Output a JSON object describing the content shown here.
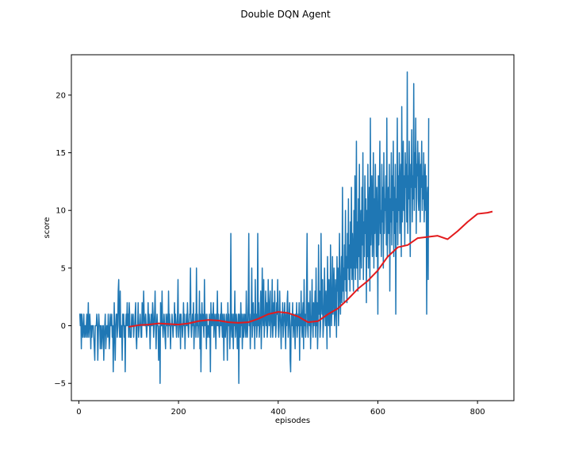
{
  "chart_data": {
    "type": "line",
    "title": "Double DQN Agent",
    "xlabel": "episodes",
    "ylabel": "score",
    "xlim": [
      -15,
      873
    ],
    "ylim": [
      -6.5,
      23.5
    ],
    "xticks": [
      0,
      200,
      400,
      600,
      800
    ],
    "yticks": [
      -5,
      0,
      5,
      10,
      15,
      20
    ],
    "grid": false,
    "colors": {
      "raw": "#1f77b4",
      "average": "#e31a1c"
    },
    "series": [
      {
        "role": "raw",
        "x_start": 1,
        "values": [
          1,
          1,
          0,
          1,
          -2,
          1,
          0,
          -1,
          0,
          1,
          -1,
          0,
          0,
          -1,
          0,
          1,
          -1,
          0,
          2,
          -1,
          0,
          1,
          0,
          -2,
          0,
          -1,
          0,
          0,
          0,
          -1,
          -2,
          -3,
          0,
          0,
          0,
          1,
          0,
          -3,
          -1,
          1,
          0,
          0,
          -2,
          0,
          0,
          -2,
          -1,
          0,
          0,
          -3,
          -1,
          0,
          1,
          -2,
          -1,
          0,
          0,
          -1,
          1,
          0,
          -2,
          -1,
          1,
          0,
          0,
          1,
          -1,
          0,
          -4,
          -1,
          2,
          -1,
          -3,
          0,
          1,
          1,
          -1,
          0,
          3,
          4,
          0,
          -1,
          3,
          -1,
          0,
          0,
          -3,
          1,
          0,
          1,
          -1,
          0,
          -4,
          0,
          1,
          0,
          2,
          0,
          1,
          -1,
          2,
          1,
          -1,
          -1,
          -1,
          1,
          0,
          0,
          1,
          -1,
          0,
          0,
          1,
          2,
          -1,
          -2,
          0,
          0,
          2,
          -1,
          0,
          0,
          1,
          0,
          -1,
          -1,
          2,
          1,
          0,
          3,
          1,
          0,
          0,
          1,
          0,
          -1,
          0,
          0,
          2,
          0,
          1,
          0,
          -2,
          0,
          1,
          0,
          0,
          2,
          1,
          -1,
          0,
          1,
          3,
          0,
          -2,
          0,
          1,
          0,
          0,
          -3,
          -1,
          0,
          -5,
          2,
          0,
          0,
          3,
          0,
          -1,
          0,
          1,
          0,
          -1,
          -2,
          1,
          0,
          0,
          1,
          -1,
          3,
          0,
          1,
          0,
          -2,
          0,
          0,
          1,
          0,
          -1,
          0,
          0,
          2,
          0,
          1,
          0,
          -1,
          0,
          1,
          4,
          -1,
          0,
          0,
          1,
          -2,
          1,
          0,
          0,
          -1,
          0,
          2,
          0,
          1,
          -2,
          0,
          0,
          1,
          0,
          2,
          0,
          -1,
          0,
          1,
          1,
          5,
          0,
          -1,
          0,
          1,
          0,
          2,
          -2,
          0,
          0,
          1,
          -1,
          5,
          0,
          1,
          -1,
          0,
          0,
          3,
          -2,
          1,
          -4,
          0,
          2,
          0,
          1,
          0,
          -1,
          4,
          0,
          1,
          0,
          -2,
          1,
          -1,
          0,
          0,
          -1,
          1,
          0,
          -4,
          2,
          0,
          1,
          0,
          1,
          2,
          -1,
          0,
          1,
          0,
          -2,
          1,
          0,
          3,
          0,
          1,
          0,
          -1,
          0,
          1,
          0,
          2,
          0,
          -1,
          1,
          0,
          -3,
          1,
          0,
          -1,
          0,
          1,
          0,
          -3,
          2,
          0,
          1,
          0,
          -2,
          0,
          8,
          0,
          -1,
          1,
          0,
          -2,
          1,
          0,
          3,
          -1,
          0,
          1,
          0,
          -2,
          0,
          1,
          -5,
          1,
          0,
          -1,
          2,
          0,
          1,
          -2,
          0,
          1,
          -1,
          0,
          1,
          0,
          -1,
          3,
          0,
          -1,
          0,
          2,
          8,
          0,
          1,
          -2,
          0,
          1,
          5,
          -1,
          0,
          2,
          0,
          1,
          -2,
          4,
          0,
          1,
          -1,
          0,
          8,
          0,
          2,
          -1,
          0,
          1,
          3,
          -2,
          0,
          5,
          1,
          0,
          4,
          -1,
          0,
          1,
          3,
          0,
          2,
          -1,
          0,
          4,
          1,
          0,
          2,
          3,
          -1,
          0,
          1,
          4,
          -1,
          0,
          2,
          0,
          3,
          1,
          -1,
          0,
          2,
          1,
          4,
          0,
          -1,
          0,
          3,
          1,
          0,
          -2,
          1,
          0,
          2,
          -1,
          0,
          1,
          2,
          0,
          -2,
          1,
          0,
          2,
          3,
          -1,
          0,
          1,
          2,
          -3,
          -4,
          0,
          1,
          0,
          2,
          -1,
          0,
          1,
          0,
          -2,
          1,
          0,
          2,
          -1,
          0,
          1,
          0,
          2,
          -3,
          1,
          0,
          3,
          0,
          -1,
          1,
          2,
          -2,
          4,
          0,
          1,
          -1,
          0,
          3,
          8,
          0,
          -1,
          2,
          1,
          0,
          3,
          -2,
          0,
          1,
          4,
          0,
          -1,
          2,
          0,
          1,
          3,
          -1,
          5,
          0,
          2,
          -2,
          0,
          7,
          1,
          3,
          -1,
          0,
          8,
          2,
          1,
          4,
          -1,
          0,
          2,
          5,
          1,
          0,
          3,
          1,
          -2,
          6,
          2,
          0,
          4,
          1,
          -1,
          7,
          3,
          0,
          2,
          6,
          1,
          3,
          5,
          0,
          1,
          4,
          2,
          -1,
          6,
          3,
          5,
          0,
          2,
          8,
          3,
          1,
          4,
          6,
          2,
          12,
          3,
          5,
          2,
          7,
          4,
          10,
          3,
          6,
          2,
          8,
          5,
          11,
          4,
          7,
          3,
          9,
          5,
          12,
          4,
          8,
          6,
          3,
          10,
          5,
          13,
          4,
          7,
          16,
          5,
          9,
          3,
          11,
          6,
          14,
          4,
          8,
          10,
          5,
          12,
          7,
          15,
          4,
          9,
          6,
          13,
          8,
          11,
          2,
          10,
          6,
          14,
          5,
          9,
          12,
          3,
          18,
          7,
          10,
          13,
          6,
          9,
          15,
          5,
          11,
          8,
          14,
          10,
          6,
          12,
          9,
          1,
          13,
          7,
          11,
          16,
          8,
          10,
          6,
          14,
          9,
          12,
          5,
          15,
          8,
          11,
          10,
          13,
          7,
          18,
          6,
          9,
          12,
          8,
          14,
          3,
          11,
          9,
          15,
          7,
          13,
          10,
          16,
          6,
          12,
          8,
          14,
          1,
          11,
          9,
          18,
          7,
          13,
          10,
          15,
          8,
          12,
          14,
          6,
          19,
          9,
          11,
          16,
          10,
          13,
          7,
          15,
          12,
          14,
          9,
          22,
          8,
          13,
          11,
          16,
          10,
          6,
          14,
          12,
          17,
          9,
          13,
          11,
          21,
          10,
          15,
          12,
          18,
          8,
          14,
          13,
          16,
          11,
          10,
          15,
          13,
          9,
          14,
          12,
          16,
          10,
          13,
          11,
          15,
          9,
          12,
          14,
          10,
          13,
          1,
          11,
          12,
          4,
          18
        ]
      },
      {
        "role": "average",
        "x": [
          100,
          120,
          140,
          160,
          180,
          200,
          220,
          240,
          260,
          280,
          300,
          320,
          340,
          360,
          380,
          400,
          420,
          440,
          460,
          480,
          500,
          520,
          540,
          560,
          580,
          600,
          620,
          640,
          660,
          680,
          700,
          720,
          740,
          760,
          780,
          800,
          820,
          830
        ],
        "values": [
          -0.1,
          0.05,
          0.1,
          0.2,
          0.15,
          0.1,
          0.2,
          0.4,
          0.5,
          0.45,
          0.3,
          0.25,
          0.3,
          0.6,
          1.0,
          1.2,
          1.1,
          0.8,
          0.3,
          0.4,
          1.0,
          1.5,
          2.3,
          3.2,
          3.9,
          4.8,
          6.0,
          6.8,
          7.0,
          7.6,
          7.7,
          7.8,
          7.5,
          8.2,
          9.0,
          9.7,
          9.8,
          9.9
        ]
      }
    ]
  }
}
